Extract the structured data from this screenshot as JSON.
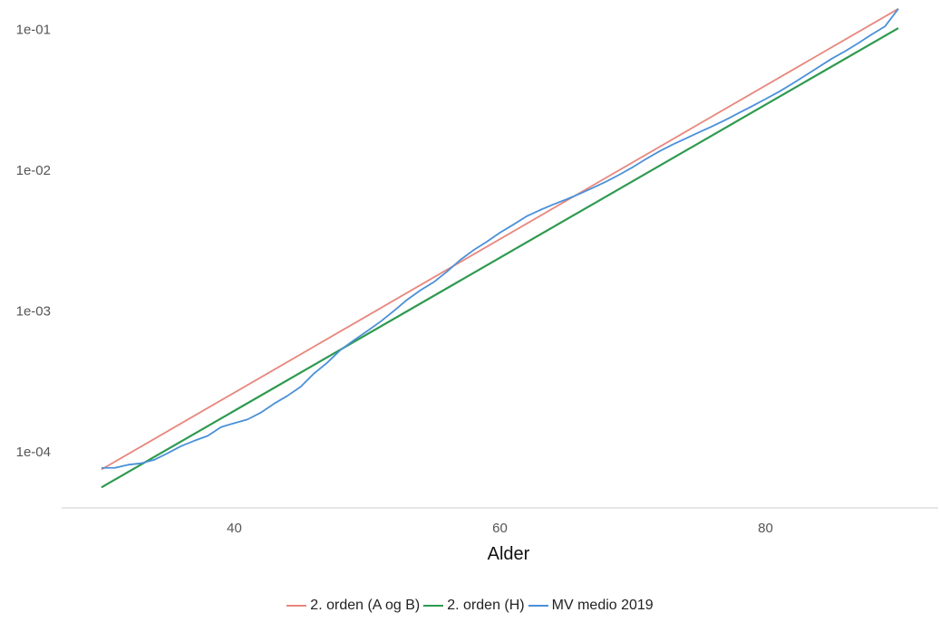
{
  "chart_data": {
    "type": "line",
    "title": "",
    "xlabel": "Alder",
    "ylabel": "",
    "x_scale": "linear",
    "y_scale": "log10",
    "xlim": [
      27,
      93
    ],
    "ylim": [
      4e-05,
      0.15
    ],
    "x_ticks": [
      40,
      60,
      80
    ],
    "x_tick_labels": [
      "40",
      "60",
      "80"
    ],
    "y_ticks": [
      0.0001,
      0.001,
      0.01,
      0.1
    ],
    "y_tick_labels": [
      "1e-04",
      "1e-03",
      "1e-02",
      "1e-01"
    ],
    "grid": false,
    "legend_position": "bottom",
    "series": [
      {
        "name": "2. orden (A og B)",
        "color": "#e8877d",
        "x": [
          30,
          90
        ],
        "y": [
          7.5e-05,
          0.14
        ]
      },
      {
        "name": "2. orden (H)",
        "color": "#2e9a4f",
        "x": [
          30,
          90
        ],
        "y": [
          5.6e-05,
          0.102
        ]
      },
      {
        "name": "MV medio 2019",
        "color": "#4a90d9",
        "x": [
          30,
          31,
          32,
          33,
          34,
          35,
          36,
          37,
          38,
          39,
          40,
          41,
          42,
          43,
          44,
          45,
          46,
          47,
          48,
          49,
          50,
          51,
          52,
          53,
          54,
          55,
          56,
          57,
          58,
          59,
          60,
          61,
          62,
          63,
          64,
          65,
          66,
          67,
          68,
          69,
          70,
          71,
          72,
          73,
          74,
          75,
          76,
          77,
          78,
          79,
          80,
          81,
          82,
          83,
          84,
          85,
          86,
          87,
          88,
          89,
          90
        ],
        "y": [
          7.7e-05,
          7.7e-05,
          8.1e-05,
          8.3e-05,
          8.8e-05,
          9.8e-05,
          0.00011,
          0.00012,
          0.00013,
          0.00015,
          0.00016,
          0.00017,
          0.00019,
          0.00022,
          0.00025,
          0.00029,
          0.00036,
          0.00043,
          0.00053,
          0.00062,
          0.00072,
          0.00084,
          0.001,
          0.0012,
          0.0014,
          0.0016,
          0.0019,
          0.0023,
          0.0027,
          0.0031,
          0.0036,
          0.0041,
          0.0047,
          0.0052,
          0.0057,
          0.0062,
          0.0068,
          0.0075,
          0.0083,
          0.0093,
          0.0105,
          0.012,
          0.0136,
          0.0152,
          0.0168,
          0.0186,
          0.0205,
          0.0228,
          0.0255,
          0.0285,
          0.032,
          0.036,
          0.041,
          0.047,
          0.054,
          0.062,
          0.07,
          0.08,
          0.092,
          0.105,
          0.14
        ]
      }
    ]
  }
}
